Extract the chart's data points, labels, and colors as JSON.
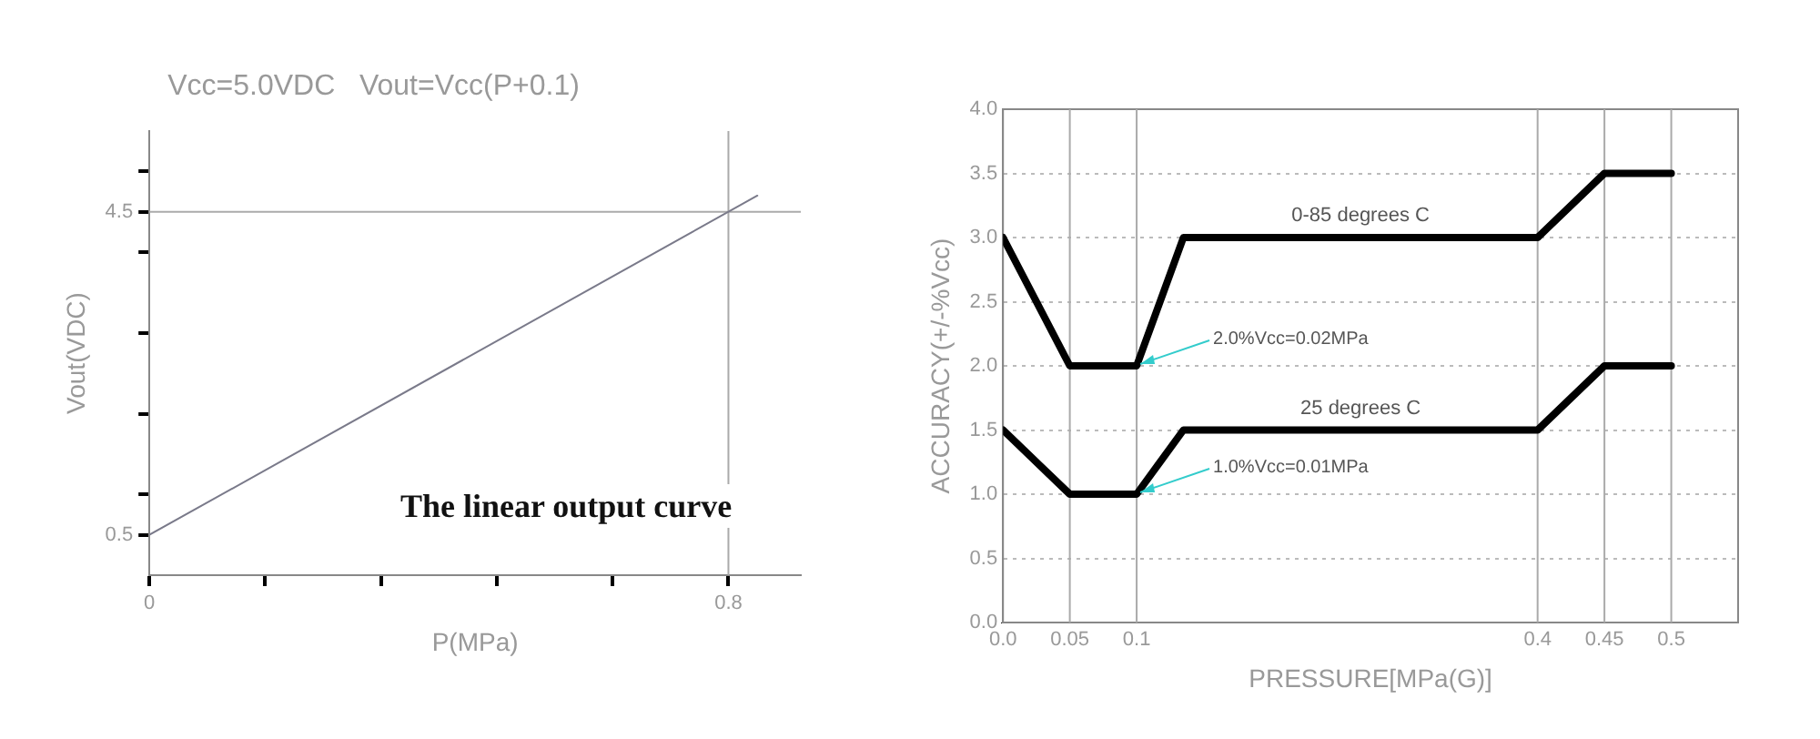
{
  "chart_data": [
    {
      "type": "line",
      "xlabel": "P(MPa)",
      "ylabel": "Vout(VDC)",
      "annotations": [
        "Vcc=5.0VDC   Vout=Vcc(P+0.1)",
        "The linear output curve"
      ],
      "series": [
        {
          "color": "#7a7a8a",
          "x": [
            0,
            0.84
          ],
          "values": [
            0.5,
            4.7
          ]
        }
      ],
      "xlim": [
        0,
        0.9
      ],
      "ylim": [
        0,
        5.5
      ],
      "xticks": [
        0,
        {
          "value": 0.16,
          "label": null
        },
        {
          "value": 0.32,
          "label": null
        },
        {
          "value": 0.48,
          "label": null
        },
        {
          "value": 0.64,
          "label": null
        },
        0.8
      ],
      "yticks": [
        0.5,
        {
          "value": 1,
          "label": null
        },
        {
          "value": 2,
          "label": null
        },
        {
          "value": 3,
          "label": null
        },
        {
          "value": 4,
          "label": null
        },
        4.5,
        {
          "value": 5,
          "label": null
        }
      ],
      "ref_lines": [
        {
          "axis": "y",
          "value": 4.5,
          "color": "#aaaaaa"
        },
        {
          "axis": "x",
          "value": 0.8,
          "color": "#aaaaaa"
        }
      ],
      "grid": false,
      "legend": false,
      "marker": "none",
      "line_style": "solid"
    },
    {
      "type": "line",
      "xlabel": "PRESSURE[MPa(G)]",
      "ylabel": "ACCURACY(+/-%Vcc)",
      "annotations": [
        {
          "text": "2.0%Vcc=0.02MPa",
          "x": 0.1,
          "y": 2
        },
        {
          "text": "1.0%Vcc=0.01MPa",
          "x": 0.1,
          "y": 1
        }
      ],
      "series": [
        {
          "name": "0-85 degrees C",
          "color": "#000000",
          "x": [
            0,
            0.05,
            0.1,
            0.135,
            0.4,
            0.45,
            0.5
          ],
          "values": [
            3,
            2,
            2,
            3,
            3,
            3.5,
            3.5
          ]
        },
        {
          "name": "25 degrees C",
          "color": "#000000",
          "x": [
            0,
            0.05,
            0.1,
            0.135,
            0.4,
            0.45,
            0.5
          ],
          "values": [
            1.5,
            1,
            1,
            1.5,
            1.5,
            2,
            2
          ]
        }
      ],
      "xlim": [
        0,
        0.55
      ],
      "ylim": [
        0,
        4
      ],
      "xticks": [
        {
          "value": 0,
          "label": "0.0"
        },
        0.05,
        0.1,
        0.4,
        0.45,
        0.5
      ],
      "yticks": [
        {
          "value": 0,
          "label": "0.0"
        },
        0.5,
        {
          "value": 1,
          "label": "1.0"
        },
        1.5,
        {
          "value": 2,
          "label": "2.0"
        },
        2.5,
        {
          "value": 3,
          "label": "3.0"
        },
        3.5,
        {
          "value": 4,
          "label": "4.0"
        }
      ],
      "ref_lines": [
        {
          "axis": "x",
          "value": 0.05,
          "color": "#aaaaaa"
        },
        {
          "axis": "x",
          "value": 0.1,
          "color": "#aaaaaa"
        },
        {
          "axis": "x",
          "value": 0.4,
          "color": "#aaaaaa"
        },
        {
          "axis": "x",
          "value": 0.45,
          "color": "#aaaaaa"
        },
        {
          "axis": "x",
          "value": 0.5,
          "color": "#aaaaaa"
        }
      ],
      "grid": "y",
      "legend": false,
      "marker": "none",
      "line_style": "solid"
    }
  ]
}
